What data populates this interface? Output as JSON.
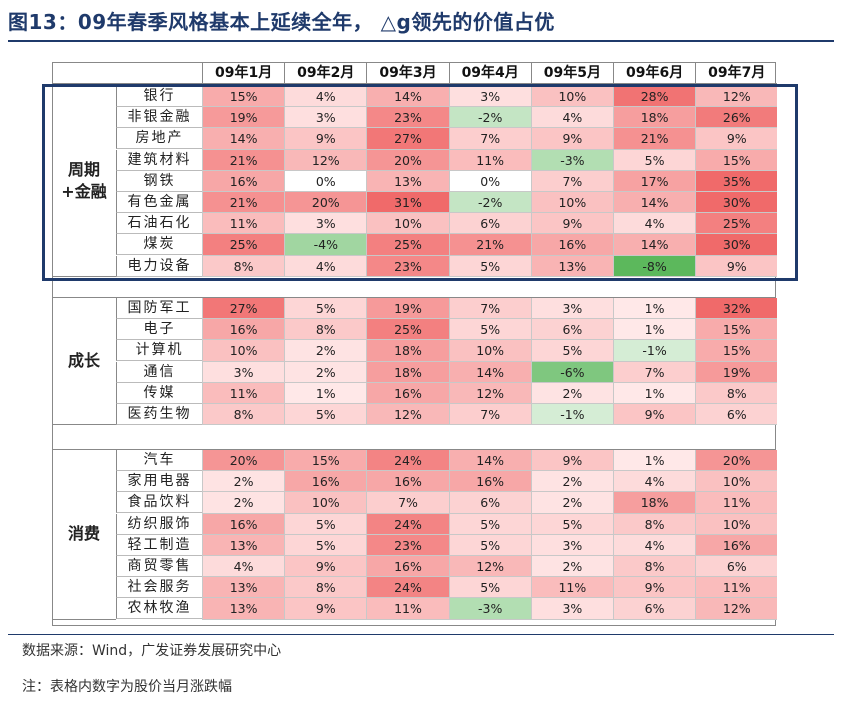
{
  "title": "图13：09年春季风格基本上延续全年，  △g领先的价值占优",
  "footer": {
    "source": "数据来源：Wind，广发证券发展研究中心",
    "note": "注：表格内数字为股价当月涨跌幅"
  },
  "colors": {
    "positive": "#f06a6a",
    "negative": "#5cb85c",
    "neutral": "#ffffff",
    "highlight_border": "#1f3a6b"
  },
  "chart_data": {
    "type": "table",
    "unit": "%",
    "columns": [
      "09年1月",
      "09年2月",
      "09年3月",
      "09年4月",
      "09年5月",
      "09年6月",
      "09年7月"
    ],
    "groups": [
      {
        "name": "周期+金融",
        "rows": [
          {
            "label": "银行",
            "values": [
              15,
              4,
              14,
              3,
              10,
              28,
              12
            ]
          },
          {
            "label": "非银金融",
            "values": [
              19,
              3,
              23,
              -2,
              4,
              18,
              26
            ]
          },
          {
            "label": "房地产",
            "values": [
              14,
              9,
              27,
              7,
              9,
              21,
              9
            ]
          },
          {
            "label": "建筑材料",
            "values": [
              21,
              12,
              20,
              11,
              -3,
              5,
              15
            ]
          },
          {
            "label": "钢铁",
            "values": [
              16,
              0,
              13,
              0,
              7,
              17,
              35
            ]
          },
          {
            "label": "有色金属",
            "values": [
              21,
              20,
              31,
              -2,
              10,
              14,
              30
            ]
          },
          {
            "label": "石油石化",
            "values": [
              11,
              3,
              10,
              6,
              9,
              4,
              25
            ]
          },
          {
            "label": "煤炭",
            "values": [
              25,
              -4,
              25,
              21,
              16,
              14,
              30
            ]
          },
          {
            "label": "电力设备",
            "values": [
              8,
              4,
              23,
              5,
              13,
              -8,
              9
            ]
          }
        ]
      },
      {
        "name": "成长",
        "rows": [
          {
            "label": "国防军工",
            "values": [
              27,
              5,
              19,
              7,
              3,
              1,
              32
            ]
          },
          {
            "label": "电子",
            "values": [
              16,
              8,
              25,
              5,
              6,
              1,
              15
            ]
          },
          {
            "label": "计算机",
            "values": [
              10,
              2,
              18,
              10,
              5,
              -1,
              15
            ]
          },
          {
            "label": "通信",
            "values": [
              3,
              2,
              18,
              14,
              -6,
              7,
              19
            ]
          },
          {
            "label": "传媒",
            "values": [
              11,
              1,
              16,
              12,
              2,
              1,
              8
            ]
          },
          {
            "label": "医药生物",
            "values": [
              8,
              5,
              12,
              7,
              -1,
              9,
              6
            ]
          }
        ]
      },
      {
        "name": "消费",
        "rows": [
          {
            "label": "汽车",
            "values": [
              20,
              15,
              24,
              14,
              9,
              1,
              20
            ]
          },
          {
            "label": "家用电器",
            "values": [
              2,
              16,
              16,
              16,
              2,
              4,
              10
            ]
          },
          {
            "label": "食品饮料",
            "values": [
              2,
              10,
              7,
              6,
              2,
              18,
              11
            ]
          },
          {
            "label": "纺织服饰",
            "values": [
              16,
              5,
              24,
              5,
              5,
              8,
              10
            ]
          },
          {
            "label": "轻工制造",
            "values": [
              13,
              5,
              23,
              5,
              3,
              4,
              16
            ]
          },
          {
            "label": "商贸零售",
            "values": [
              4,
              9,
              16,
              12,
              2,
              8,
              6
            ]
          },
          {
            "label": "社会服务",
            "values": [
              13,
              8,
              24,
              5,
              11,
              9,
              11
            ]
          },
          {
            "label": "农林牧渔",
            "values": [
              13,
              9,
              11,
              -3,
              3,
              6,
              12
            ]
          }
        ]
      }
    ],
    "highlighted_group": "周期+金融"
  }
}
